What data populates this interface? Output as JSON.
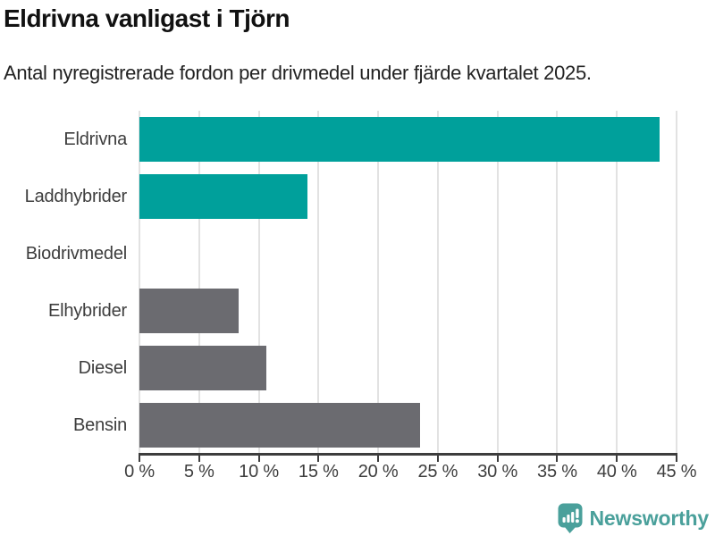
{
  "header": {
    "title": "Eldrivna vanligast i Tjörn",
    "subtitle": "Antal nyregistrerade fordon per drivmedel under fjärde kvartalet 2025."
  },
  "chart_data": {
    "type": "bar",
    "orientation": "horizontal",
    "title": "Eldrivna vanligast i Tjörn",
    "subtitle": "Antal nyregistrerade fordon per drivmedel under fjärde kvartalet 2025.",
    "categories": [
      "Eldrivna",
      "Laddhybrider",
      "Biodrivmedel",
      "Elhybrider",
      "Diesel",
      "Bensin"
    ],
    "values": [
      43.6,
      14.1,
      0,
      8.3,
      10.6,
      23.5
    ],
    "unit": "%",
    "xlabel": "",
    "ylabel": "",
    "xlim": [
      0,
      45
    ],
    "x_ticks": [
      0,
      5,
      10,
      15,
      20,
      25,
      30,
      35,
      40,
      45
    ],
    "x_tick_labels": [
      "0 %",
      "5 %",
      "10 %",
      "15 %",
      "20 %",
      "25 %",
      "30 %",
      "35 %",
      "40 %",
      "45 %"
    ],
    "bar_colors": [
      "#00a09b",
      "#00a09b",
      "#6b6b70",
      "#6b6b70",
      "#6b6b70",
      "#6b6b70"
    ],
    "grid": true,
    "legend": "none"
  },
  "colors": {
    "highlight_teal": "#00a09b",
    "bar_gray": "#6b6b70",
    "axis": "#3d3d3d",
    "gridline": "#e2e2e2",
    "brand_teal": "#4aa09b"
  },
  "footer": {
    "brand": "Newsworthy"
  }
}
